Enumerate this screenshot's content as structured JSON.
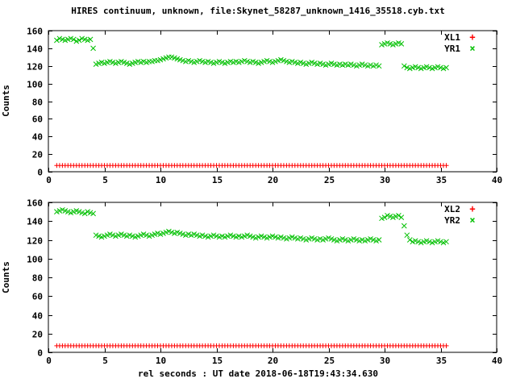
{
  "title": "HIRES continuum, unknown, file:Skynet_58287_unknown_1416_35518.cyb.txt",
  "xlabel": "rel seconds : UT date 2018-06-18T19:43:34.630",
  "ylabel": "Counts",
  "colors": {
    "background": "#ffffff",
    "frame": "#000000",
    "text": "#000000",
    "red": "#ff0000",
    "green": "#00c000"
  },
  "chart_data": [
    {
      "type": "scatter",
      "panel": "top",
      "xlim": [
        0,
        40
      ],
      "ylim": [
        0,
        160
      ],
      "xticks": [
        0,
        5,
        10,
        15,
        20,
        25,
        30,
        35,
        40
      ],
      "yticks": [
        0,
        20,
        40,
        60,
        80,
        100,
        120,
        140,
        160
      ],
      "legend_position": "top-right",
      "grid": false,
      "series": [
        {
          "name": "XL1",
          "marker": "plus",
          "glyph": "+",
          "color": "#ff0000",
          "x_start": 0.75,
          "x_step": 0.25,
          "count": 140,
          "y_const": 7
        },
        {
          "name": "YR1",
          "marker": "cross",
          "glyph": "×",
          "color": "#00c000",
          "segments": [
            {
              "x_start": 0.75,
              "x_step": 0.25,
              "y": [
                149,
                151,
                150,
                149,
                150,
                151,
                150,
                148,
                149,
                151,
                150,
                149,
                150,
                140
              ]
            },
            {
              "x_start": 4.25,
              "x_step": 0.25,
              "y": [
                122,
                123,
                124,
                123,
                124,
                125,
                124,
                123,
                124,
                125,
                124,
                123,
                122,
                123,
                124,
                125,
                124,
                125,
                124,
                125,
                125,
                126,
                126,
                127,
                128,
                129,
                130,
                130,
                129,
                128,
                127,
                126,
                125,
                126,
                125,
                124,
                125,
                126,
                125,
                124,
                125,
                124,
                123,
                124,
                125,
                124,
                123,
                124,
                125,
                124,
                125,
                124,
                125,
                126,
                125,
                124,
                125,
                124,
                123,
                124,
                125,
                126,
                125,
                124,
                125,
                126,
                127,
                126,
                125,
                124,
                125,
                124,
                123,
                124,
                123,
                122,
                123,
                124,
                123,
                122,
                123,
                122,
                121,
                122,
                123,
                122,
                121,
                122,
                121,
                122,
                121,
                122,
                121,
                120,
                121,
                122,
                121,
                120,
                121,
                120,
                121,
                120
              ]
            },
            {
              "x_start": 29.75,
              "x_step": 0.25,
              "y": [
                144,
                145,
                146,
                145,
                144,
                145,
                146,
                145
              ]
            },
            {
              "x_start": 31.75,
              "x_step": 0.25,
              "y": [
                120,
                118,
                117,
                118,
                119,
                118,
                117,
                118,
                119,
                118,
                117,
                118,
                119,
                118,
                117,
                118
              ]
            }
          ]
        }
      ]
    },
    {
      "type": "scatter",
      "panel": "bottom",
      "xlim": [
        0,
        40
      ],
      "ylim": [
        0,
        160
      ],
      "xticks": [
        0,
        5,
        10,
        15,
        20,
        25,
        30,
        35,
        40
      ],
      "yticks": [
        0,
        20,
        40,
        60,
        80,
        100,
        120,
        140,
        160
      ],
      "legend_position": "top-right",
      "grid": false,
      "series": [
        {
          "name": "XL2",
          "marker": "plus",
          "glyph": "+",
          "color": "#ff0000",
          "x_start": 0.75,
          "x_step": 0.25,
          "count": 140,
          "y_const": 7
        },
        {
          "name": "YR2",
          "marker": "cross",
          "glyph": "×",
          "color": "#00c000",
          "segments": [
            {
              "x_start": 0.75,
              "x_step": 0.25,
              "y": [
                150,
                151,
                152,
                151,
                150,
                149,
                150,
                151,
                150,
                149,
                148,
                150,
                149,
                148
              ]
            },
            {
              "x_start": 4.25,
              "x_step": 0.25,
              "y": [
                125,
                124,
                123,
                124,
                125,
                126,
                125,
                124,
                125,
                126,
                125,
                124,
                125,
                124,
                123,
                124,
                125,
                126,
                125,
                124,
                125,
                126,
                127,
                126,
                127,
                128,
                129,
                128,
                127,
                128,
                127,
                126,
                125,
                126,
                125,
                126,
                125,
                124,
                125,
                124,
                123,
                124,
                125,
                124,
                123,
                124,
                123,
                124,
                125,
                124,
                123,
                124,
                123,
                124,
                125,
                124,
                123,
                122,
                123,
                124,
                123,
                122,
                123,
                124,
                123,
                122,
                123,
                122,
                121,
                122,
                123,
                122,
                121,
                122,
                121,
                120,
                121,
                122,
                121,
                120,
                121,
                120,
                121,
                122,
                121,
                120,
                119,
                120,
                121,
                120,
                119,
                120,
                121,
                120,
                119,
                120,
                119,
                120,
                121,
                120,
                119,
                120
              ]
            },
            {
              "x_start": 29.75,
              "x_step": 0.25,
              "y": [
                143,
                144,
                146,
                145,
                144,
                145,
                146,
                144
              ]
            },
            {
              "x_start": 31.75,
              "x_step": 0.25,
              "y": [
                135,
                125,
                120,
                118,
                119,
                118,
                117,
                118,
                119,
                118,
                117,
                118,
                119,
                118,
                117,
                118
              ]
            }
          ]
        }
      ]
    }
  ]
}
